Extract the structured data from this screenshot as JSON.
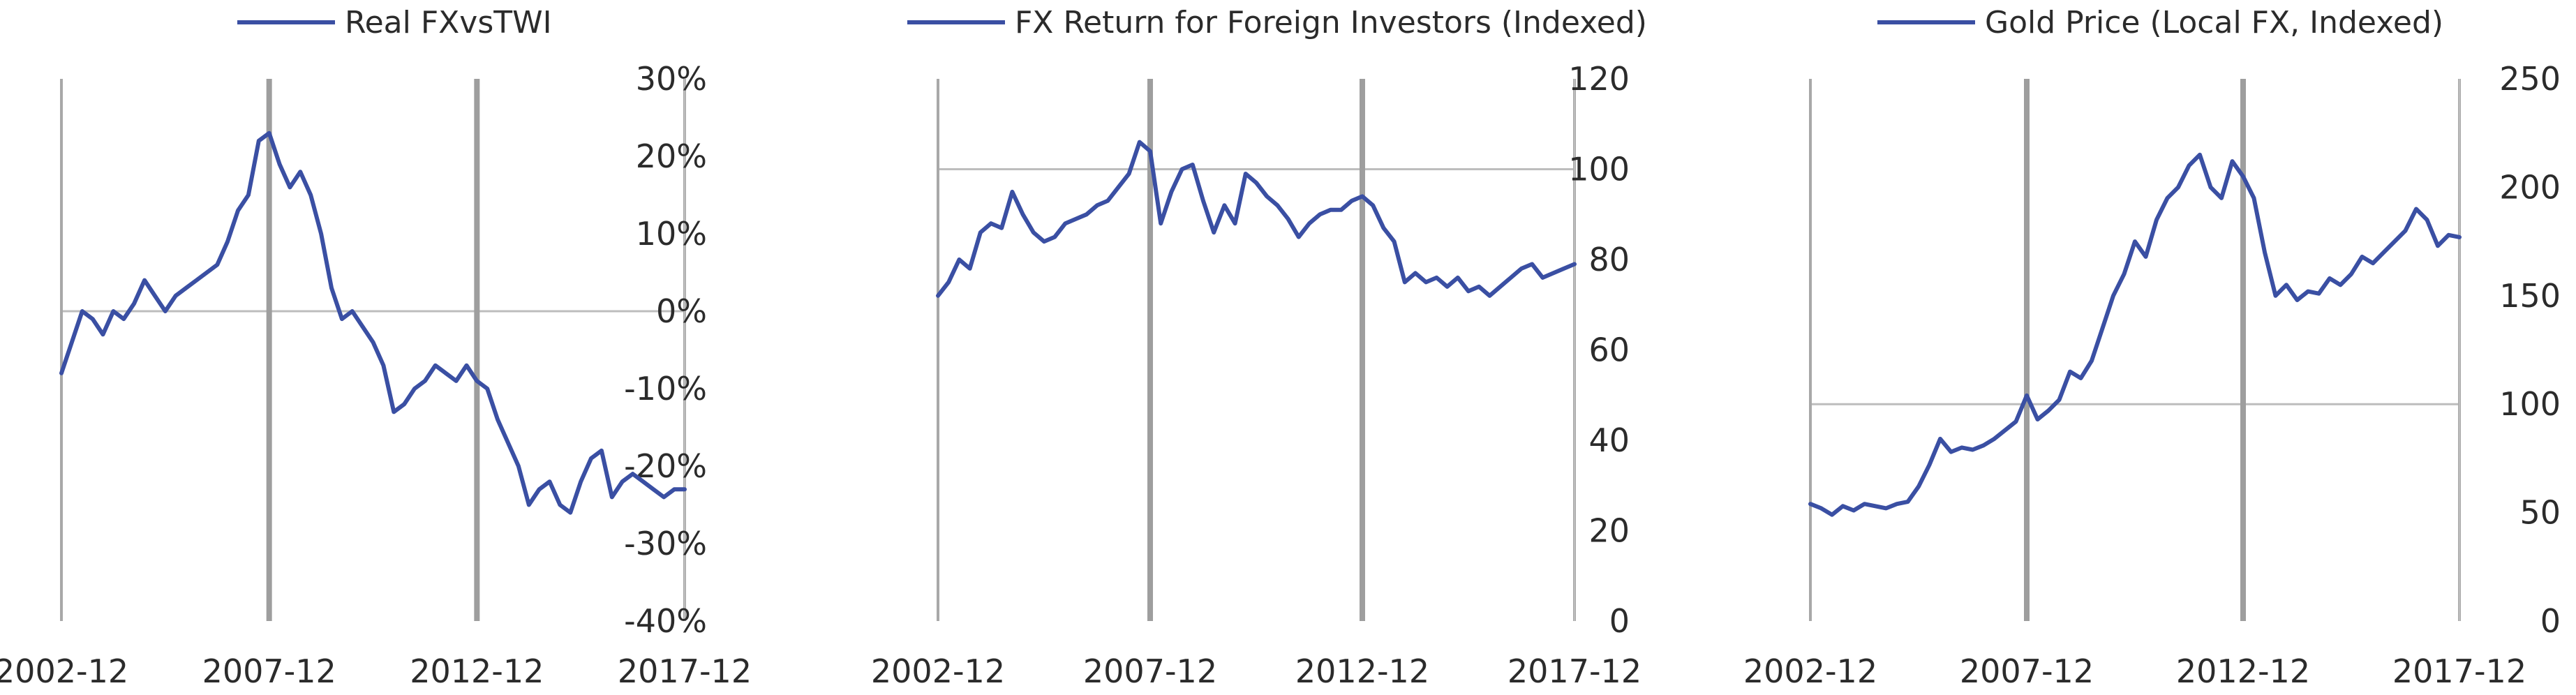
{
  "chart_data": [
    {
      "type": "line",
      "legend": "Real FXvsTWI",
      "legend_position": "top",
      "x_ticks": [
        "2002-12",
        "2007-12",
        "2012-12",
        "2017-12"
      ],
      "y_ticks": [
        "30%",
        "20%",
        "10%",
        "0%",
        "-10%",
        "-20%",
        "-30%",
        "-40%"
      ],
      "ylim": [
        -40,
        30
      ],
      "xlim": [
        "2002-12",
        "2017-12"
      ],
      "y_axis_side": "right",
      "baseline": 0,
      "series": [
        {
          "name": "Real FXvsTWI",
          "color": "#3a4fa3",
          "x": [
            "2002-12",
            "2003-03",
            "2003-06",
            "2003-09",
            "2003-12",
            "2004-03",
            "2004-06",
            "2004-09",
            "2004-12",
            "2005-03",
            "2005-06",
            "2005-09",
            "2005-12",
            "2006-03",
            "2006-06",
            "2006-09",
            "2006-12",
            "2007-03",
            "2007-06",
            "2007-09",
            "2007-12",
            "2008-03",
            "2008-06",
            "2008-09",
            "2008-12",
            "2009-03",
            "2009-06",
            "2009-09",
            "2009-12",
            "2010-03",
            "2010-06",
            "2010-09",
            "2010-12",
            "2011-03",
            "2011-06",
            "2011-09",
            "2011-12",
            "2012-03",
            "2012-06",
            "2012-09",
            "2012-12",
            "2013-03",
            "2013-06",
            "2013-09",
            "2013-12",
            "2014-03",
            "2014-06",
            "2014-09",
            "2014-12",
            "2015-03",
            "2015-06",
            "2015-09",
            "2015-12",
            "2016-03",
            "2016-06",
            "2016-09",
            "2016-12",
            "2017-03",
            "2017-06",
            "2017-09",
            "2017-12"
          ],
          "values": [
            -8,
            -4,
            0,
            -1,
            -3,
            0,
            -1,
            1,
            4,
            2,
            0,
            2,
            3,
            4,
            5,
            6,
            9,
            13,
            15,
            22,
            23,
            19,
            16,
            18,
            15,
            10,
            3,
            -1,
            0,
            -2,
            -4,
            -7,
            -13,
            -12,
            -10,
            -9,
            -7,
            -8,
            -9,
            -7,
            -9,
            -10,
            -14,
            -17,
            -20,
            -25,
            -23,
            -22,
            -25,
            -26,
            -22,
            -19,
            -18,
            -24,
            -22,
            -21,
            -22,
            -23,
            -24,
            -23,
            -23
          ]
        }
      ]
    },
    {
      "type": "line",
      "legend": "FX Return for Foreign Investors (Indexed)",
      "legend_position": "top",
      "x_ticks": [
        "2002-12",
        "2007-12",
        "2012-12",
        "2017-12"
      ],
      "y_ticks": [
        "120",
        "100",
        "80",
        "60",
        "40",
        "20",
        "0"
      ],
      "ylim": [
        0,
        120
      ],
      "xlim": [
        "2002-12",
        "2017-12"
      ],
      "y_axis_side": "right",
      "baseline": 100,
      "series": [
        {
          "name": "FX Return for Foreign Investors (Indexed)",
          "color": "#3a4fa3",
          "x": [
            "2002-12",
            "2003-03",
            "2003-06",
            "2003-09",
            "2003-12",
            "2004-03",
            "2004-06",
            "2004-09",
            "2004-12",
            "2005-03",
            "2005-06",
            "2005-09",
            "2005-12",
            "2006-03",
            "2006-06",
            "2006-09",
            "2006-12",
            "2007-03",
            "2007-06",
            "2007-09",
            "2007-12",
            "2008-03",
            "2008-06",
            "2008-09",
            "2008-12",
            "2009-03",
            "2009-06",
            "2009-09",
            "2009-12",
            "2010-03",
            "2010-06",
            "2010-09",
            "2010-12",
            "2011-03",
            "2011-06",
            "2011-09",
            "2011-12",
            "2012-03",
            "2012-06",
            "2012-09",
            "2012-12",
            "2013-03",
            "2013-06",
            "2013-09",
            "2013-12",
            "2014-03",
            "2014-06",
            "2014-09",
            "2014-12",
            "2015-03",
            "2015-06",
            "2015-09",
            "2015-12",
            "2016-03",
            "2016-06",
            "2016-09",
            "2016-12",
            "2017-03",
            "2017-06",
            "2017-09",
            "2017-12"
          ],
          "values": [
            72,
            75,
            80,
            78,
            86,
            88,
            87,
            95,
            90,
            86,
            84,
            85,
            88,
            89,
            90,
            92,
            93,
            96,
            99,
            106,
            104,
            88,
            95,
            100,
            101,
            93,
            86,
            92,
            88,
            99,
            97,
            94,
            92,
            89,
            85,
            88,
            90,
            91,
            91,
            93,
            94,
            92,
            87,
            84,
            75,
            77,
            75,
            76,
            74,
            76,
            73,
            74,
            72,
            74,
            76,
            78,
            79,
            76,
            77,
            78,
            79
          ]
        }
      ]
    },
    {
      "type": "line",
      "legend": "Gold Price (Local FX, Indexed)",
      "legend_position": "top",
      "x_ticks": [
        "2002-12",
        "2007-12",
        "2012-12",
        "2017-12"
      ],
      "y_ticks": [
        "250",
        "200",
        "150",
        "100",
        "50",
        "0"
      ],
      "ylim": [
        0,
        250
      ],
      "xlim": [
        "2002-12",
        "2017-12"
      ],
      "y_axis_side": "right",
      "baseline": 100,
      "series": [
        {
          "name": "Gold Price (Local FX, Indexed)",
          "color": "#3a4fa3",
          "x": [
            "2002-12",
            "2003-03",
            "2003-06",
            "2003-09",
            "2003-12",
            "2004-03",
            "2004-06",
            "2004-09",
            "2004-12",
            "2005-03",
            "2005-06",
            "2005-09",
            "2005-12",
            "2006-03",
            "2006-06",
            "2006-09",
            "2006-12",
            "2007-03",
            "2007-06",
            "2007-09",
            "2007-12",
            "2008-03",
            "2008-06",
            "2008-09",
            "2008-12",
            "2009-03",
            "2009-06",
            "2009-09",
            "2009-12",
            "2010-03",
            "2010-06",
            "2010-09",
            "2010-12",
            "2011-03",
            "2011-06",
            "2011-09",
            "2011-12",
            "2012-03",
            "2012-06",
            "2012-09",
            "2012-12",
            "2013-03",
            "2013-06",
            "2013-09",
            "2013-12",
            "2014-03",
            "2014-06",
            "2014-09",
            "2014-12",
            "2015-03",
            "2015-06",
            "2015-09",
            "2015-12",
            "2016-03",
            "2016-06",
            "2016-09",
            "2016-12",
            "2017-03",
            "2017-06",
            "2017-09",
            "2017-12"
          ],
          "values": [
            54,
            52,
            49,
            53,
            51,
            54,
            53,
            52,
            54,
            55,
            62,
            72,
            84,
            78,
            80,
            79,
            81,
            84,
            88,
            92,
            104,
            93,
            97,
            102,
            115,
            112,
            120,
            135,
            150,
            160,
            175,
            168,
            185,
            195,
            200,
            210,
            215,
            200,
            195,
            212,
            205,
            195,
            170,
            150,
            155,
            148,
            152,
            151,
            158,
            155,
            160,
            168,
            165,
            170,
            175,
            180,
            190,
            185,
            173,
            178,
            177
          ]
        }
      ]
    }
  ]
}
